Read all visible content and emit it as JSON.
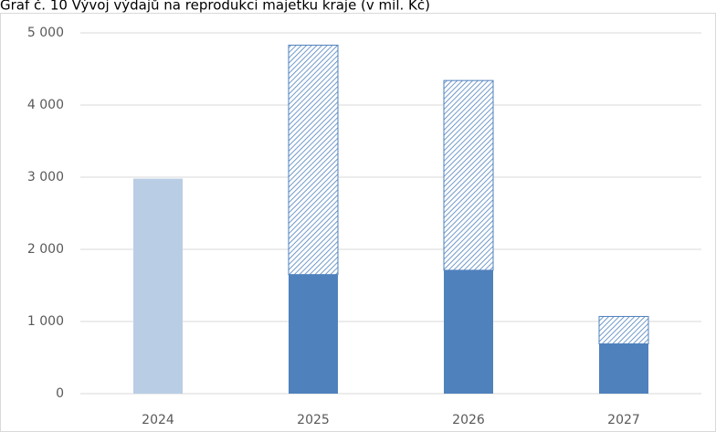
{
  "chart_data": {
    "type": "bar",
    "stacked": true,
    "title": "Graf č. 10 Vývoj výdajů na reprodukci majetku kraje (v mil. Kč)",
    "categories": [
      "2024",
      "2025",
      "2026",
      "2027"
    ],
    "series": [
      {
        "color": "#b9cde5",
        "values": [
          2980,
          null,
          null,
          null
        ]
      },
      {
        "color": "#4f81bd",
        "values": [
          null,
          1650,
          1710,
          690
        ]
      },
      {
        "color": "#4f81bd",
        "pattern": "hatch",
        "values": [
          null,
          3180,
          2630,
          380
        ]
      }
    ],
    "ylim": [
      0,
      5000
    ],
    "yticks": [
      0,
      {
        "value": 1000,
        "label": "1 000"
      },
      {
        "value": 2000,
        "label": "2 000"
      },
      {
        "value": 3000,
        "label": "3 000"
      },
      {
        "value": 4000,
        "label": "4 000"
      },
      {
        "value": 5000,
        "label": "5 000"
      }
    ],
    "grid": true
  }
}
